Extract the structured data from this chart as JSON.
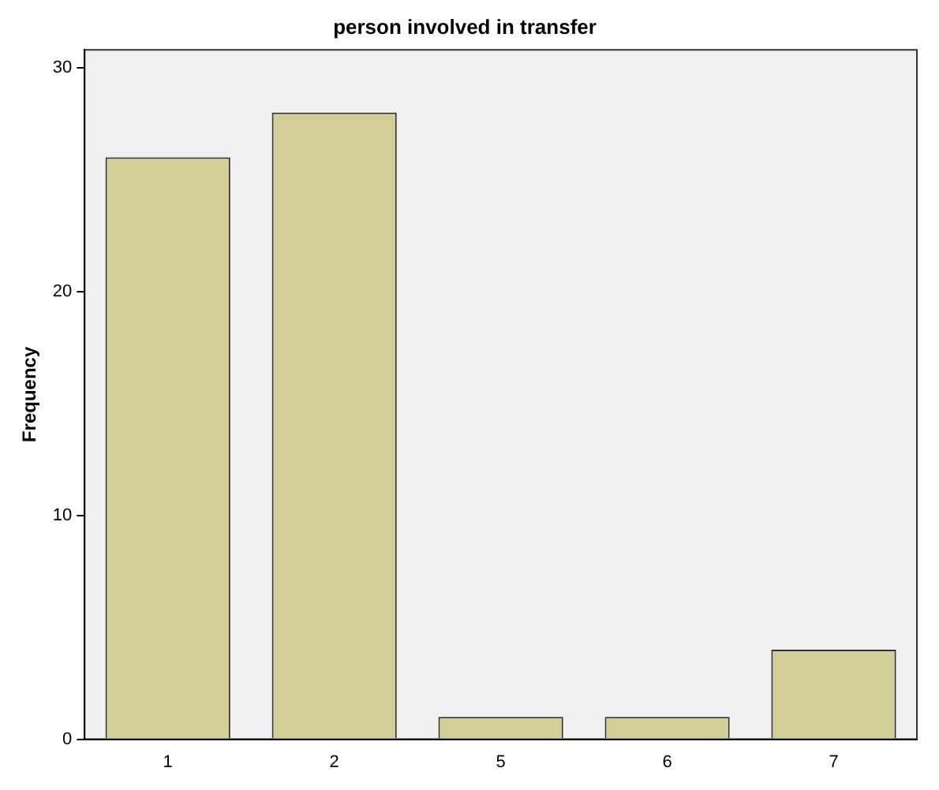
{
  "chart_data": {
    "type": "bar",
    "title": "person involved in transfer",
    "ylabel": "Frequency",
    "categories": [
      "1",
      "2",
      "5",
      "6",
      "7"
    ],
    "values": [
      26,
      28,
      1,
      1,
      4
    ],
    "color": "#d3ce97",
    "ylim": [
      0,
      30.8
    ],
    "yticks": [
      0,
      10,
      20,
      30
    ],
    "grid": false
  }
}
